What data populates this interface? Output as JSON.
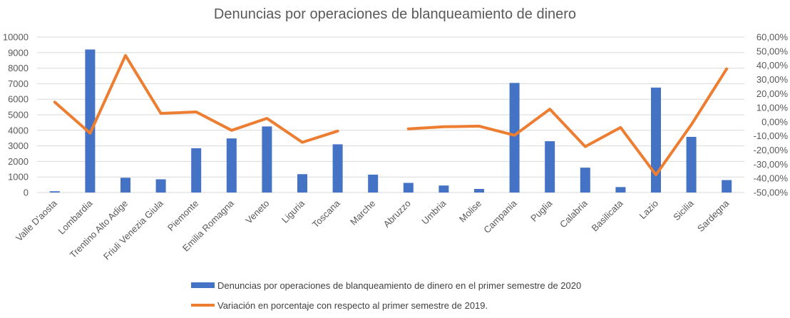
{
  "chart_data": {
    "type": "bar",
    "title": "Denuncias por operaciones de blanqueamiento de dinero",
    "categories": [
      "Valle D'aosta",
      "Lombardia",
      "Trentino Alto Adige",
      "Friuli Venezia Giula",
      "Piemonte",
      "Emilia Romagna",
      "Veneto",
      "Liguria",
      "Toscana",
      "Marche",
      "Abruzzo",
      "Umbria",
      "Molise",
      "Campania",
      "Puglia",
      "Calabria",
      "Basilicata",
      "Lazio",
      "Sicilia",
      "Sardegna"
    ],
    "series": [
      {
        "name": "Denuncias por operaciones de blanqueamiento de dinero en el primer semestre de 2020",
        "type": "bar",
        "axis": "left",
        "color": "#4472c4",
        "values": [
          80,
          9200,
          950,
          850,
          2850,
          3480,
          4250,
          1180,
          3100,
          1150,
          620,
          450,
          230,
          7050,
          3300,
          1600,
          350,
          6750,
          3580,
          800
        ]
      },
      {
        "name": "Variación en porcentaje con respecto al primer semestre de 2019.",
        "type": "line",
        "axis": "right",
        "color": "#ed7d31",
        "values": [
          14.0,
          -8.0,
          47.0,
          6.0,
          7.0,
          -6.0,
          2.5,
          -14.5,
          -6.5,
          null,
          -5.0,
          -3.5,
          -3.0,
          -9.5,
          9.0,
          -17.5,
          -4.0,
          -37.5,
          -2.0,
          37.5
        ]
      }
    ],
    "y_left": {
      "min": 0,
      "max": 10000,
      "step": 1000,
      "ticks": [
        "0",
        "1000",
        "2000",
        "3000",
        "4000",
        "5000",
        "6000",
        "7000",
        "8000",
        "9000",
        "10000"
      ]
    },
    "y_right": {
      "min": -50,
      "max": 60,
      "step": 10,
      "ticks": [
        "-50,00%",
        "-40,00%",
        "-30,00%",
        "-20,00%",
        "-10,00%",
        "0,00%",
        "10,00%",
        "20,00%",
        "30,00%",
        "40,00%",
        "50,00%",
        "60,00%"
      ]
    },
    "grid": true,
    "legend_position": "bottom"
  }
}
